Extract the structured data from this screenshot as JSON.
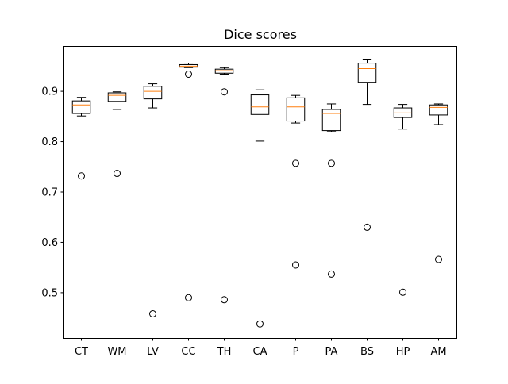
{
  "chart_data": {
    "type": "box",
    "title": "Dice scores",
    "xlabel": "",
    "ylabel": "",
    "categories": [
      "CT",
      "WM",
      "LV",
      "CC",
      "TH",
      "CA",
      "P",
      "PA",
      "BS",
      "HP",
      "AM"
    ],
    "ylim": [
      0.41,
      0.99
    ],
    "yticks": [
      0.5,
      0.6,
      0.7,
      0.8,
      0.9
    ],
    "ytick_labels": [
      "0.5",
      "0.6",
      "0.7",
      "0.8",
      "0.9"
    ],
    "grid": false,
    "colors": {
      "box": "#000000",
      "median": "#ff7f0e",
      "flier": "#000000"
    },
    "boxes": [
      {
        "label": "CT",
        "whisker_low": 0.851,
        "q1": 0.856,
        "median": 0.873,
        "q3": 0.881,
        "whisker_high": 0.888,
        "fliers": [
          0.732
        ]
      },
      {
        "label": "WM",
        "whisker_low": 0.864,
        "q1": 0.88,
        "median": 0.892,
        "q3": 0.897,
        "whisker_high": 0.899,
        "fliers": [
          0.737
        ]
      },
      {
        "label": "LV",
        "whisker_low": 0.867,
        "q1": 0.885,
        "median": 0.9,
        "q3": 0.91,
        "whisker_high": 0.915,
        "fliers": [
          0.458
        ]
      },
      {
        "label": "CC",
        "whisker_low": 0.947,
        "q1": 0.948,
        "median": 0.95,
        "q3": 0.953,
        "whisker_high": 0.956,
        "fliers": [
          0.934,
          0.49
        ]
      },
      {
        "label": "TH",
        "whisker_low": 0.934,
        "q1": 0.936,
        "median": 0.941,
        "q3": 0.944,
        "whisker_high": 0.947,
        "fliers": [
          0.899,
          0.486
        ]
      },
      {
        "label": "CA",
        "whisker_low": 0.801,
        "q1": 0.854,
        "median": 0.869,
        "q3": 0.893,
        "whisker_high": 0.903,
        "fliers": [
          0.438
        ]
      },
      {
        "label": "P",
        "whisker_low": 0.837,
        "q1": 0.841,
        "median": 0.869,
        "q3": 0.887,
        "whisker_high": 0.892,
        "fliers": [
          0.757,
          0.555
        ]
      },
      {
        "label": "PA",
        "whisker_low": 0.82,
        "q1": 0.822,
        "median": 0.856,
        "q3": 0.864,
        "whisker_high": 0.875,
        "fliers": [
          0.757,
          0.537
        ]
      },
      {
        "label": "BS",
        "whisker_low": 0.874,
        "q1": 0.918,
        "median": 0.945,
        "q3": 0.956,
        "whisker_high": 0.964,
        "fliers": [
          0.63
        ]
      },
      {
        "label": "HP",
        "whisker_low": 0.825,
        "q1": 0.848,
        "median": 0.857,
        "q3": 0.867,
        "whisker_high": 0.874,
        "fliers": [
          0.501
        ]
      },
      {
        "label": "AM",
        "whisker_low": 0.834,
        "q1": 0.853,
        "median": 0.868,
        "q3": 0.873,
        "whisker_high": 0.875,
        "fliers": [
          0.566
        ]
      }
    ]
  }
}
